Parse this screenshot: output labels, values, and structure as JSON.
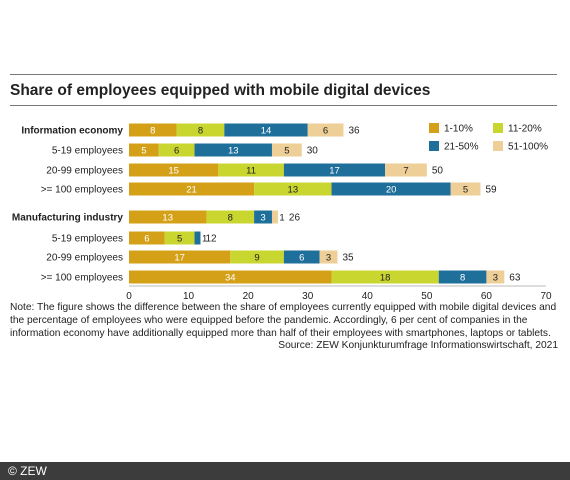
{
  "chart_data": {
    "type": "bar",
    "orientation": "horizontal",
    "stacked": true,
    "title": "Share of employees equipped with mobile digital devices",
    "xlim": [
      0,
      70
    ],
    "x_ticks": [
      0,
      10,
      20,
      30,
      40,
      50,
      60,
      70
    ],
    "grid": false,
    "legend_position": "top-right",
    "series": [
      {
        "name": "1-10%",
        "color": "#d4a017"
      },
      {
        "name": "11-20%",
        "color": "#c9d630"
      },
      {
        "name": "21-50%",
        "color": "#1f6f9b"
      },
      {
        "name": "51-100%",
        "color": "#edcf97"
      }
    ],
    "groups": [
      {
        "rows": [
          {
            "label": "Information economy",
            "bold": true,
            "values": [
              8,
              8,
              14,
              6
            ],
            "total": 36
          },
          {
            "label": "5-19 employees",
            "values": [
              5,
              6,
              13,
              5
            ],
            "total": 30
          },
          {
            "label": "20-99 employees",
            "values": [
              15,
              11,
              17,
              7
            ],
            "total": 50
          },
          {
            "label": ">= 100 employees",
            "values": [
              21,
              13,
              20,
              5
            ],
            "total": 59
          }
        ]
      },
      {
        "rows": [
          {
            "label": "Manufacturing industry",
            "bold": true,
            "values": [
              13,
              8,
              3,
              1
            ],
            "total": 26
          },
          {
            "label": "5-19 employees",
            "values": [
              6,
              5,
              1,
              0
            ],
            "total": 12
          },
          {
            "label": "20-99 employees",
            "values": [
              17,
              9,
              6,
              3
            ],
            "total": 35
          },
          {
            "label": ">= 100 employees",
            "values": [
              34,
              18,
              8,
              3
            ],
            "total": 63
          }
        ]
      }
    ]
  },
  "note": "Note: The figure shows the difference between the share of employees currently equipped with mobile digital devices and the percentage of employees who were equipped before the pandemic. Accordingly, 6 per cent of companies in the information economy have additionally equipped more than half of their employees with smartphones, laptops or tablets.",
  "source": "Source: ZEW Konjunkturumfrage Informationswirtschaft, 2021",
  "copyright": "© ZEW"
}
